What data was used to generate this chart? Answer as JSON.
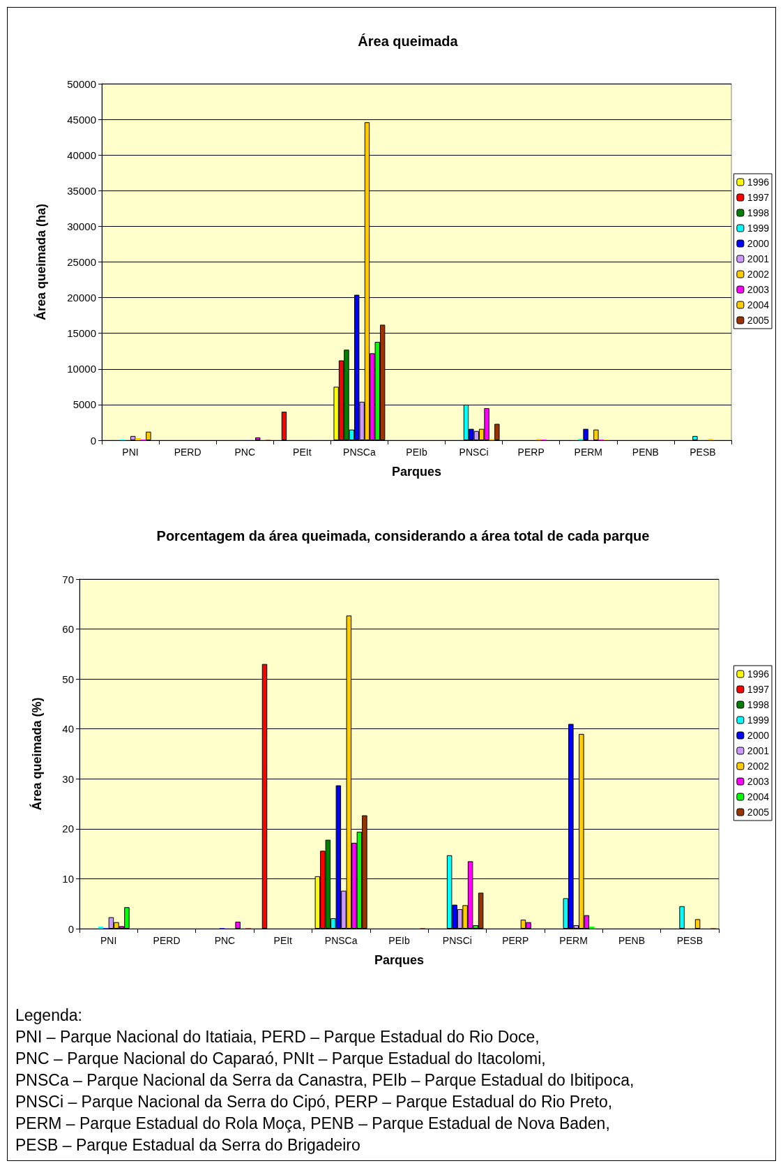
{
  "chart_data": [
    {
      "type": "bar",
      "title": "Área queimada",
      "xlabel": "Parques",
      "ylabel": "Área queimada (ha)",
      "categories": [
        "PNI",
        "PERD",
        "PNC",
        "PEIt",
        "PNSCa",
        "PEIb",
        "PNSCi",
        "PERP",
        "PERM",
        "PENB",
        "PESB"
      ],
      "ylim": [
        0,
        50000
      ],
      "yticks": [
        0,
        5000,
        10000,
        15000,
        20000,
        25000,
        30000,
        35000,
        40000,
        45000,
        50000
      ],
      "grid": "y",
      "legend": "right",
      "series": [
        {
          "name": "1996",
          "color": "#ffff00",
          "values": [
            null,
            null,
            null,
            null,
            7500,
            null,
            null,
            null,
            null,
            null,
            null
          ]
        },
        {
          "name": "1997",
          "color": "#ff0000",
          "values": [
            null,
            null,
            null,
            4000,
            11200,
            null,
            null,
            null,
            null,
            null,
            null
          ]
        },
        {
          "name": "1998",
          "color": "#008000",
          "values": [
            null,
            null,
            null,
            null,
            12700,
            null,
            null,
            null,
            null,
            null,
            null
          ]
        },
        {
          "name": "1999",
          "color": "#00ffff",
          "values": [
            100,
            null,
            null,
            null,
            1500,
            null,
            5000,
            null,
            200,
            null,
            600
          ]
        },
        {
          "name": "2000",
          "color": "#0000ff",
          "values": [
            null,
            null,
            null,
            null,
            20400,
            null,
            1600,
            null,
            1600,
            null,
            null
          ]
        },
        {
          "name": "2001",
          "color": "#cc99ff",
          "values": [
            600,
            null,
            50,
            null,
            5400,
            null,
            1300,
            null,
            50,
            null,
            null
          ]
        },
        {
          "name": "2002",
          "color": "#ffcc00",
          "values": [
            300,
            null,
            null,
            null,
            44600,
            null,
            1600,
            200,
            1500,
            null,
            200
          ]
        },
        {
          "name": "2003",
          "color": "#ff00ff",
          "values": [
            100,
            null,
            400,
            null,
            12200,
            null,
            4500,
            100,
            100,
            null,
            null
          ]
        },
        {
          "name": "2004",
          "color": "#ffcc00",
          "colors": [
            "#ffcc00",
            null,
            null,
            null,
            "#00ff00",
            null,
            "#ffcc00",
            null,
            "#ffcc00",
            null,
            null
          ],
          "values": [
            1200,
            null,
            null,
            null,
            13800,
            null,
            200,
            null,
            50,
            null,
            null
          ]
        },
        {
          "name": "2005",
          "color": "#993300",
          "values": [
            null,
            null,
            50,
            null,
            16200,
            null,
            2300,
            null,
            null,
            null,
            null
          ]
        }
      ]
    },
    {
      "type": "bar",
      "title": "Porcentagem da área queimada, considerando a área total de cada parque",
      "xlabel": "Parques",
      "ylabel": "Área queimada (%)",
      "categories": [
        "PNI",
        "PERD",
        "PNC",
        "PEIt",
        "PNSCa",
        "PEIb",
        "PNSCi",
        "PERP",
        "PERM",
        "PENB",
        "PESB"
      ],
      "ylim": [
        0,
        70
      ],
      "yticks": [
        0,
        10,
        20,
        30,
        40,
        50,
        60,
        70
      ],
      "grid": "y",
      "legend": "right",
      "series": [
        {
          "name": "1996",
          "color": "#ffff00",
          "values": [
            null,
            null,
            null,
            null,
            10.5,
            null,
            null,
            null,
            null,
            null,
            null
          ]
        },
        {
          "name": "1997",
          "color": "#ff0000",
          "values": [
            null,
            null,
            null,
            53,
            15.6,
            null,
            null,
            null,
            null,
            null,
            null
          ]
        },
        {
          "name": "1998",
          "color": "#008000",
          "values": [
            null,
            null,
            null,
            null,
            17.8,
            null,
            null,
            null,
            null,
            null,
            null
          ]
        },
        {
          "name": "1999",
          "color": "#00ffff",
          "values": [
            0.4,
            null,
            null,
            null,
            2.1,
            null,
            14.7,
            null,
            6.1,
            null,
            4.5
          ]
        },
        {
          "name": "2000",
          "color": "#0000ff",
          "values": [
            0.1,
            null,
            0.1,
            null,
            28.7,
            null,
            4.8,
            null,
            41,
            null,
            null
          ]
        },
        {
          "name": "2001",
          "color": "#cc99ff",
          "values": [
            2.3,
            null,
            0.1,
            null,
            7.6,
            null,
            3.9,
            null,
            0.7,
            null,
            null
          ]
        },
        {
          "name": "2002",
          "color": "#ffcc00",
          "values": [
            1.3,
            null,
            null,
            null,
            62.7,
            null,
            4.7,
            1.8,
            39,
            null,
            1.9
          ]
        },
        {
          "name": "2003",
          "color": "#ff00ff",
          "values": [
            0.5,
            null,
            1.4,
            null,
            17.2,
            null,
            13.5,
            1.3,
            2.7,
            null,
            null
          ]
        },
        {
          "name": "2004",
          "color": "#00ff00",
          "values": [
            4.3,
            null,
            null,
            null,
            19.4,
            null,
            0.7,
            null,
            0.4,
            null,
            null
          ]
        },
        {
          "name": "2005",
          "color": "#993300",
          "values": [
            null,
            null,
            0.1,
            null,
            22.7,
            0.1,
            7.2,
            null,
            null,
            null,
            0.1
          ]
        }
      ],
      "annotations": [
        "Legenda:",
        "PNI – Parque Nacional do Itatiaia, PERD – Parque Estadual do Rio Doce,",
        "PNC – Parque Nacional do Caparaó, PNIt – Parque Estadual do Itacolomi,",
        "PNSCa – Parque Nacional da Serra da Canastra, PEIb – Parque Estadual do Ibitipoca,",
        "PNSCi – Parque Nacional da Serra do Cipó, PERP – Parque Estadual do Rio Preto,",
        "PERM – Parque Estadual do Rola Moça, PENB – Parque Estadual de Nova Baden,",
        "PESB – Parque Estadual da Serra do Brigadeiro"
      ]
    }
  ]
}
